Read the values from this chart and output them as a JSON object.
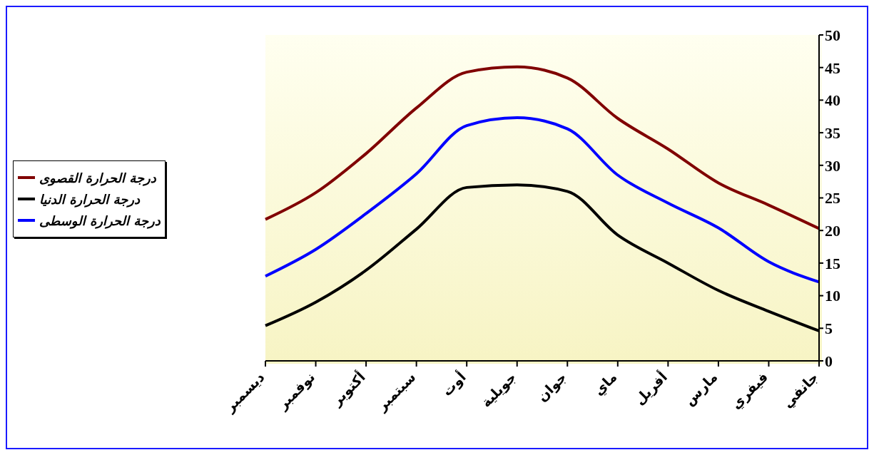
{
  "chart_data": {
    "type": "line",
    "categories": [
      "ديسمبر",
      "نوفمبر",
      "أكتوبر",
      "سبتمبر",
      "أوت",
      "جويلية",
      "جوان",
      "ماي",
      "أفريل",
      "مارس",
      "فيفري",
      "جانفي"
    ],
    "series": [
      {
        "name": "درجة الحرارة القصوى",
        "color": "#800000",
        "values": [
          21.7,
          25.8,
          31.8,
          38.8,
          44.3,
          45.1,
          43.4,
          37.2,
          32.5,
          27.3,
          23.9,
          20.3
        ]
      },
      {
        "name": "درجة الحرارة الدنيا",
        "color": "#000000",
        "values": [
          5.4,
          9.0,
          13.9,
          20.2,
          26.6,
          27.0,
          26.0,
          19.3,
          15.0,
          10.8,
          7.6,
          4.6
        ]
      },
      {
        "name": "درجة الحرارة الوسطى",
        "color": "#0000ff",
        "values": [
          13.0,
          17.1,
          22.6,
          28.7,
          36.1,
          37.3,
          35.6,
          28.5,
          24.2,
          20.4,
          15.2,
          12.1
        ]
      }
    ],
    "ylim": [
      0,
      50
    ],
    "yticks": [
      0,
      5,
      10,
      15,
      20,
      25,
      30,
      35,
      40,
      45,
      50
    ],
    "grid": false,
    "legend": "left",
    "marker": "none",
    "line_style": "solid"
  }
}
